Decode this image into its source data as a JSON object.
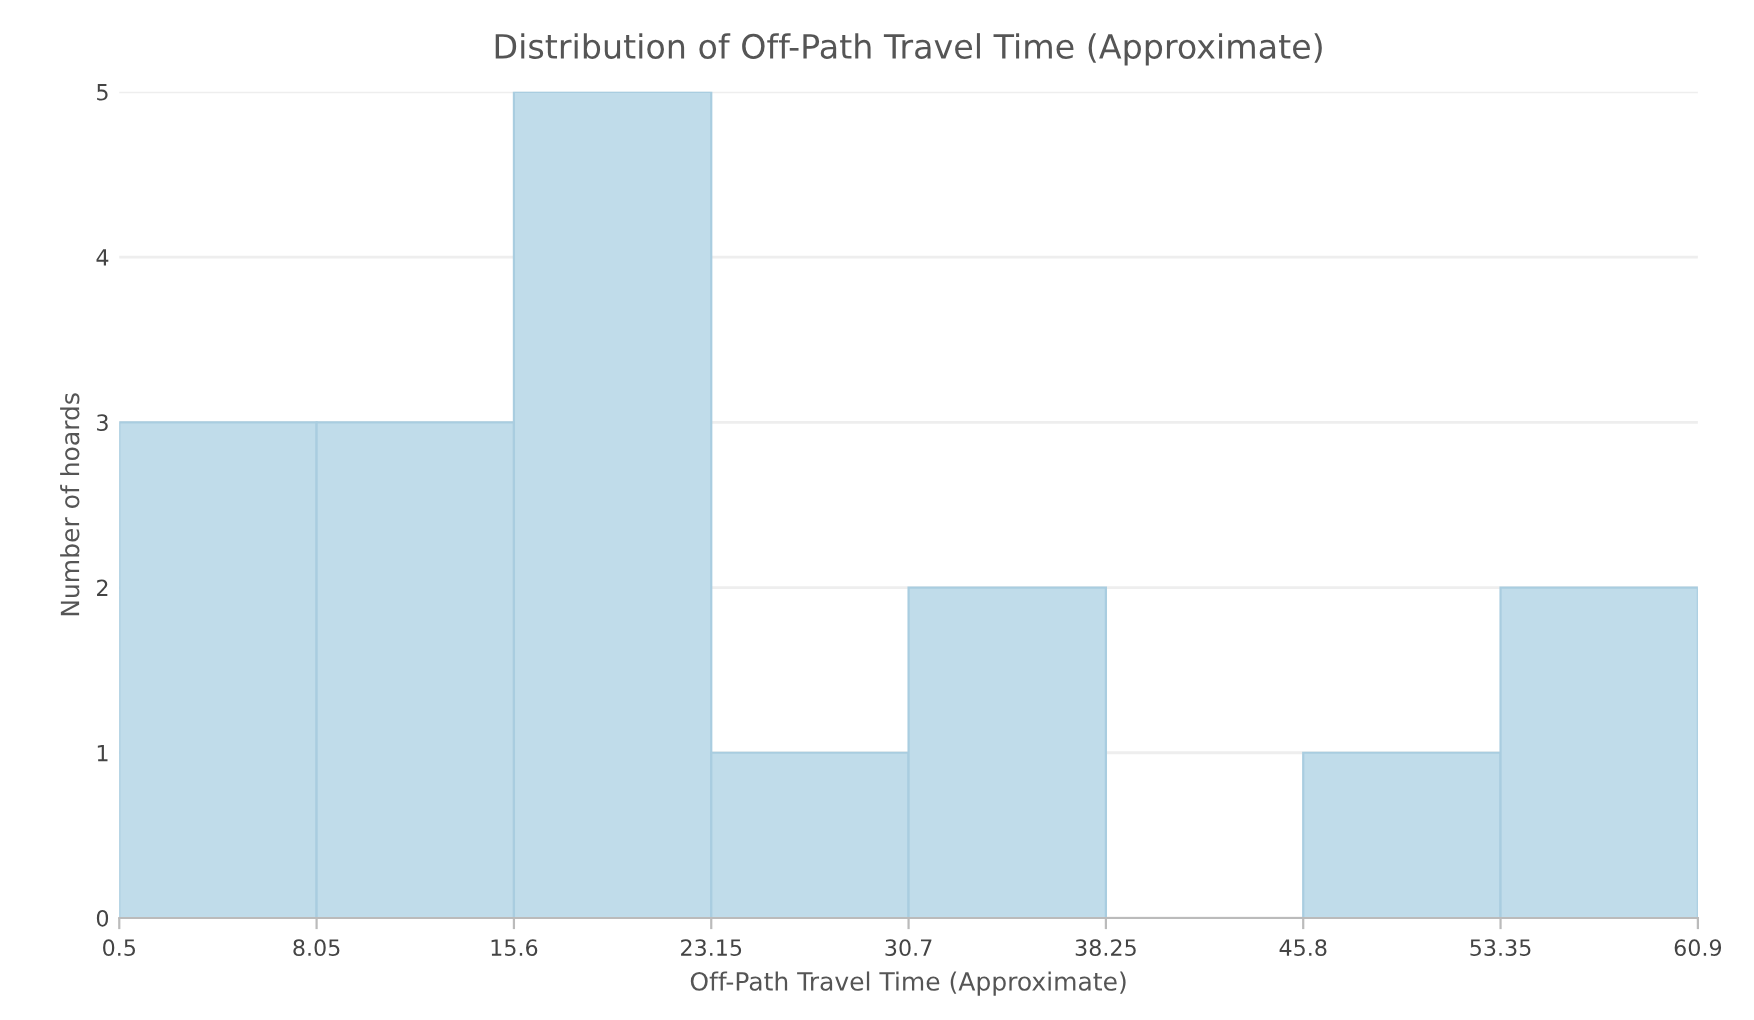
{
  "chart_data": {
    "type": "histogram",
    "title": "Distribution of Off-Path Travel Time (Approximate)",
    "xlabel": "Off-Path Travel Time (Approximate)",
    "ylabel": "Number of hoards",
    "bins": [
      0.5,
      8.05,
      15.6,
      23.15,
      30.7,
      38.25,
      45.8,
      53.35,
      60.9
    ],
    "values": [
      3,
      3,
      5,
      1,
      2,
      0,
      1,
      2
    ],
    "color": "#c0dcea",
    "xlim": [
      0.5,
      60.9
    ],
    "xticks": [
      0.5,
      8.05,
      15.6,
      23.15,
      30.7,
      38.25,
      45.8,
      53.35,
      60.9
    ],
    "ylim": [
      0,
      5
    ],
    "yticks": [
      0,
      1,
      2,
      3,
      4,
      5
    ],
    "grid": "y"
  }
}
